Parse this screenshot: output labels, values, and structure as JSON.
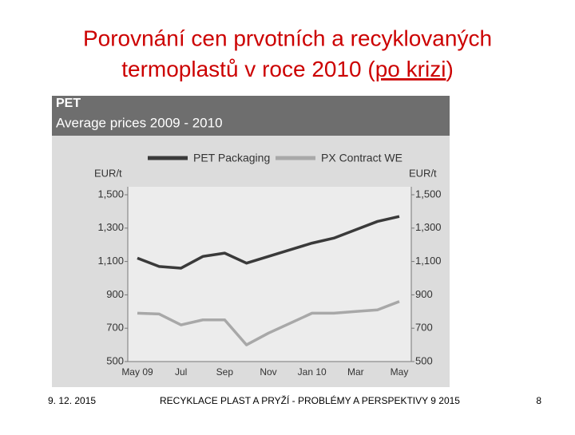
{
  "slide": {
    "title_line1": "Porovnání cen prvotních a recyklovaných",
    "title_line2_start": "termoplastů v roce 2010 (",
    "title_line2_underlined": "po krizi",
    "title_line2_end": ")",
    "footer_date": "9. 12. 2015",
    "footer_text": "RECYKLACE PLAST A PRYŽÍ - PROBLÉMY A PERSPEKTIVY 9 2015",
    "page_number": "8"
  },
  "chart_data": {
    "type": "line",
    "title": "PET",
    "subtitle": "Average prices 2009 - 2010",
    "y_label": "EUR/t",
    "y2_label": "EUR/t",
    "categories": [
      "May 09",
      null,
      "Jul",
      null,
      "Sep",
      null,
      "Nov",
      null,
      "Jan 10",
      null,
      "Mar",
      null,
      "May"
    ],
    "series": [
      {
        "name": "PET Packaging",
        "color": "#3a3a3a",
        "values": [
          1120,
          1070,
          1060,
          1130,
          1150,
          1090,
          1130,
          1170,
          1210,
          1240,
          1290,
          1340,
          1370
        ]
      },
      {
        "name": "PX Contract WE",
        "color": "#a8a8a8",
        "values": [
          790,
          785,
          720,
          750,
          750,
          600,
          670,
          730,
          790,
          790,
          800,
          810,
          860
        ]
      }
    ],
    "ylim": [
      500,
      1500
    ],
    "yticks": [
      {
        "value": 500,
        "label": "500"
      },
      {
        "value": 700,
        "label": "700"
      },
      {
        "value": 900,
        "label": "900"
      },
      {
        "value": 1100,
        "label": "1,100"
      },
      {
        "value": 1300,
        "label": "1,300"
      },
      {
        "value": 1500,
        "label": "1,500"
      }
    ],
    "y2lim": [
      500,
      1500
    ],
    "y2ticks": [
      {
        "value": 500,
        "label": "500"
      },
      {
        "value": 700,
        "label": "700"
      },
      {
        "value": 900,
        "label": "900"
      },
      {
        "value": 1100,
        "label": "1,100"
      },
      {
        "value": 1300,
        "label": "1,300"
      },
      {
        "value": 1500,
        "label": "1,500"
      }
    ]
  }
}
